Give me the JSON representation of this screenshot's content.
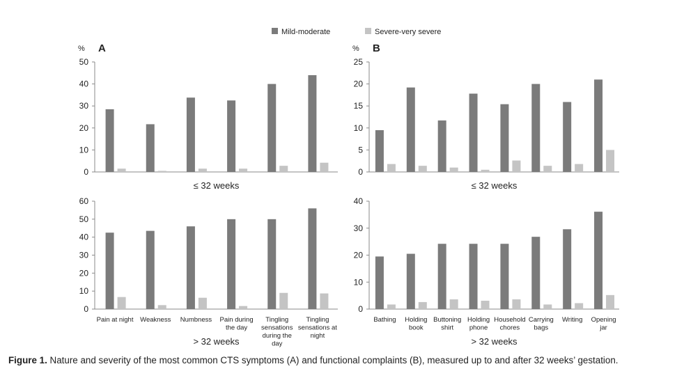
{
  "colors": {
    "mild_moderate": "#7b7b7b",
    "severe_very_severe": "#c4c4c4",
    "axis": "#8a8a8a",
    "text": "#222222"
  },
  "legend": [
    {
      "label": "Mild-moderate",
      "color": "#7b7b7b"
    },
    {
      "label": "Severe-very severe",
      "color": "#c4c4c4"
    }
  ],
  "caption": {
    "label": "Figure 1.",
    "text": "Nature and severity of the most common CTS symptoms (A) and functional complaints (B), measured up to and after 32 weeks’ gestation."
  },
  "chart_data": [
    {
      "id": "A-top",
      "type": "bar",
      "panel_label": "A",
      "unit_label": "%",
      "xlabel": "≤ 32 weeks",
      "ylim": [
        0,
        50
      ],
      "yticks": [
        0,
        10,
        20,
        30,
        40,
        50
      ],
      "grid": false,
      "categories": [
        "Pain at night",
        "Weakness",
        "Numbness",
        "Pain during the day",
        "Tingling sensations during the day",
        "Tingling sensations at night"
      ],
      "show_category_labels": false,
      "series": [
        {
          "name": "Mild-moderate",
          "values": [
            28.5,
            21.7,
            33.8,
            32.5,
            40,
            44
          ]
        },
        {
          "name": "Severe-very severe",
          "values": [
            1.5,
            0.5,
            1.5,
            1.5,
            2.8,
            4.2
          ]
        }
      ]
    },
    {
      "id": "A-bottom",
      "type": "bar",
      "xlabel": "> 32 weeks",
      "ylim": [
        0,
        60
      ],
      "yticks": [
        0,
        10,
        20,
        30,
        40,
        50,
        60
      ],
      "grid": false,
      "categories": [
        "Pain at night",
        "Weakness",
        "Numbness",
        "Pain during the day",
        "Tingling sensations during the day",
        "Tingling sensations at night"
      ],
      "category_lines": [
        [
          "Pain at night"
        ],
        [
          "Weakness"
        ],
        [
          "Numbness"
        ],
        [
          "Pain during",
          "the day"
        ],
        [
          "Tingling",
          "sensations",
          "during the",
          "day"
        ],
        [
          "Tingling",
          "sensations at",
          "night"
        ]
      ],
      "show_category_labels": true,
      "series": [
        {
          "name": "Mild-moderate",
          "values": [
            42.5,
            43.5,
            46,
            50,
            50,
            56
          ]
        },
        {
          "name": "Severe-very severe",
          "values": [
            6.7,
            2.2,
            6.3,
            1.7,
            9,
            8.7
          ]
        }
      ]
    },
    {
      "id": "B-top",
      "type": "bar",
      "panel_label": "B",
      "unit_label": "%",
      "xlabel": "≤ 32 weeks",
      "ylim": [
        0,
        25
      ],
      "yticks": [
        0,
        5,
        10,
        15,
        20,
        25
      ],
      "grid": false,
      "categories": [
        "Bathing",
        "Holding book",
        "Buttoning shirt",
        "Holding phone",
        "Household chores",
        "Carrying bags",
        "Writing",
        "Opening jar"
      ],
      "show_category_labels": false,
      "series": [
        {
          "name": "Mild-moderate",
          "values": [
            9.5,
            19.2,
            11.7,
            17.8,
            15.4,
            20,
            15.9,
            21
          ]
        },
        {
          "name": "Severe-very severe",
          "values": [
            1.8,
            1.4,
            1,
            0.5,
            2.6,
            1.4,
            1.8,
            5
          ]
        }
      ]
    },
    {
      "id": "B-bottom",
      "type": "bar",
      "xlabel": "> 32 weeks",
      "ylim": [
        0,
        40
      ],
      "yticks": [
        0,
        10,
        20,
        30,
        40
      ],
      "grid": false,
      "categories": [
        "Bathing",
        "Holding book",
        "Buttoning shirt",
        "Holding phone",
        "Household chores",
        "Carrying bags",
        "Writing",
        "Opening jar"
      ],
      "category_lines": [
        [
          "Bathing"
        ],
        [
          "Holding",
          "book"
        ],
        [
          "Buttoning",
          "shirt"
        ],
        [
          "Holding",
          "phone"
        ],
        [
          "Household",
          "chores"
        ],
        [
          "Carrying",
          "bags"
        ],
        [
          "Writing"
        ],
        [
          "Opening",
          "jar"
        ]
      ],
      "show_category_labels": true,
      "series": [
        {
          "name": "Mild-moderate",
          "values": [
            19.5,
            20.5,
            24.2,
            24.2,
            24.2,
            26.8,
            29.6,
            36.1
          ]
        },
        {
          "name": "Severe-very severe",
          "values": [
            1.7,
            2.6,
            3.6,
            3.1,
            3.6,
            1.7,
            2.2,
            5.2
          ]
        }
      ]
    }
  ]
}
